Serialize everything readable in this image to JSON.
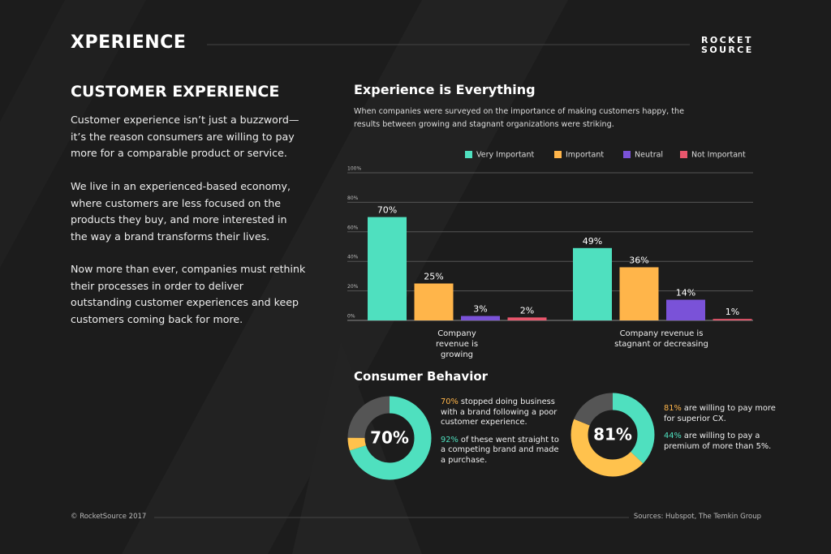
{
  "header": {
    "logo": "XPERIENCE",
    "brand": [
      "ROCKET",
      "SOURCE"
    ]
  },
  "intro": {
    "title": "CUSTOMER EXPERIENCE",
    "paragraphs": [
      "Customer experience isn’t just a buzzword—it’s the reason consumers are willing to pay more for a comparable product or service.",
      "We live in an experienced-based economy, where customers are less focused on the products they buy, and more interested in the way a brand transforms their lives.",
      "Now more than ever, companies must  rethink their processes in order to deliver outstanding customer experiences and keep customers coming back for more."
    ]
  },
  "chart_data": {
    "type": "bar",
    "title": "Experience is Everything",
    "subtitle": "When companies were surveyed on the importance of making customers happy, the results between growing and stagnant organizations were striking.",
    "categories": [
      "Company revenue is growing",
      "Company revenue is stagnant or decreasing"
    ],
    "series": [
      {
        "name": "Very Important",
        "color": "#4fe0bf",
        "values": [
          70,
          49
        ],
        "value_labels": [
          "70%",
          "49%"
        ]
      },
      {
        "name": "Important",
        "color": "#ffb54a",
        "values": [
          25,
          36
        ],
        "value_labels": [
          "25%",
          "36%"
        ]
      },
      {
        "name": "Neutral",
        "color": "#7a52d8",
        "values": [
          3,
          14
        ],
        "value_labels": [
          "3%",
          "14%"
        ]
      },
      {
        "name": "Not Important",
        "color": "#e8566c",
        "values": [
          2,
          1
        ],
        "value_labels": [
          "2%",
          "1%"
        ]
      }
    ],
    "ylim": [
      0,
      100
    ],
    "yticks": [
      {
        "value": 0,
        "label": "0%"
      },
      {
        "value": 20,
        "label": "20%"
      },
      {
        "value": 40,
        "label": "40%"
      },
      {
        "value": 60,
        "label": "60%"
      },
      {
        "value": 80,
        "label": "80%"
      },
      {
        "value": 100,
        "label": "100%"
      }
    ],
    "grid": true,
    "legend": "top-right"
  },
  "behavior": {
    "title": "Consumer Behavior",
    "donuts": [
      {
        "center_label": "70%",
        "segments": [
          {
            "value": 70,
            "color": "#4fe0bf"
          },
          {
            "value": 5,
            "color": "#ffc24d"
          },
          {
            "value": 25,
            "color": "#555555"
          }
        ],
        "stats": [
          {
            "highlight": "70%",
            "text": " stopped doing business with a brand following a poor customer experience.",
            "color": "#ffb54a"
          },
          {
            "highlight": "92%",
            "text": " of these went straight to a competing brand and made a purchase.",
            "color": "#4fe0bf"
          }
        ]
      },
      {
        "center_label": "81%",
        "segments": [
          {
            "value": 37,
            "color": "#4fe0bf"
          },
          {
            "value": 44,
            "color": "#ffc24d"
          },
          {
            "value": 19,
            "color": "#555555"
          }
        ],
        "stats": [
          {
            "highlight": "81%",
            "text": " are willing to pay more for superior CX.",
            "color": "#ffb54a"
          },
          {
            "highlight": "44%",
            "text": " are willing to pay a premium of more than 5%.",
            "color": "#4fe0bf"
          }
        ]
      }
    ]
  },
  "footer": {
    "copyright": "© RocketSource 2017",
    "sources": "Sources: Hubspot, The Temkin Group"
  }
}
